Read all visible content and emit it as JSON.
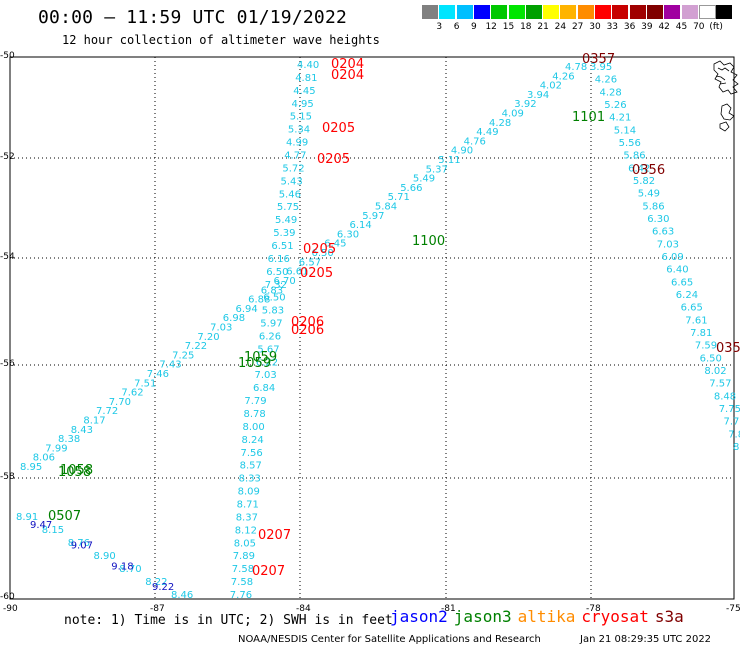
{
  "header": {
    "title": "00:00 – 11:59 UTC 01/19/2022",
    "subtitle": "12 hour collection of altimeter wave heights"
  },
  "colorbar": {
    "colors": [
      "#808080",
      "#00e5ff",
      "#00bfff",
      "#0000ff",
      "#00c800",
      "#00e600",
      "#00a000",
      "#ffff00",
      "#ffb400",
      "#ff8c00",
      "#ff0000",
      "#c80000",
      "#a00000",
      "#800000",
      "#a000a0",
      "#d2a0d2",
      "#ffffff",
      "#000000"
    ],
    "labels": [
      "3",
      "6",
      "9",
      "12",
      "15",
      "18",
      "21",
      "24",
      "27",
      "30",
      "33",
      "36",
      "39",
      "42",
      "45",
      "70",
      "(ft)"
    ]
  },
  "axes": {
    "y_labels": [
      "-50",
      "-52",
      "-54",
      "-56",
      "-58",
      "-60"
    ],
    "x_labels": [
      "-90",
      "-87",
      "-84",
      "-81",
      "-78",
      "-75"
    ]
  },
  "note": "note:  1) Time is in UTC; 2) SWH is in feet",
  "legend": [
    {
      "name": "jason2",
      "color": "#0000ff"
    },
    {
      "name": "jason3",
      "color": "#008000"
    },
    {
      "name": "altika",
      "color": "#ff8c00"
    },
    {
      "name": "cryosat",
      "color": "#ff0000"
    },
    {
      "name": "s3a",
      "color": "#800000"
    }
  ],
  "footer": {
    "credit": "NOAA/NESDIS Center for Satellite Applications and Research",
    "stamp": "Jan 21 08:29:35 UTC 2022"
  },
  "tracks": {
    "cyan_diagonal": [
      "8.95",
      "8.06",
      "7.99",
      "8.38",
      "8.43",
      "8.17",
      "7.72",
      "7.70",
      "7.62",
      "7.51",
      "7.46",
      "7.43",
      "7.25",
      "7.22",
      "7.20",
      "7.03",
      "6.98",
      "6.94",
      "6.88",
      "6.83",
      "6.70",
      "6.61",
      "6.57",
      "6.50",
      "6.45",
      "6.30",
      "6.14",
      "5.97",
      "5.84",
      "5.71",
      "5.66",
      "5.49",
      "5.37",
      "5.11",
      "4.90",
      "4.76",
      "4.49",
      "4.28",
      "4.09",
      "3.92",
      "3.94",
      "4.02",
      "4.26",
      "4.78"
    ],
    "cyan_vertical_left": [
      "4.40",
      "4.81",
      "4.45",
      "4.95",
      "5.15",
      "5.34",
      "4.99",
      "4.77",
      "5.72",
      "5.43",
      "5.46",
      "5.75",
      "5.49",
      "5.39",
      "6.51",
      "6.16",
      "6.50",
      "7.32",
      "6.50",
      "5.83",
      "5.97",
      "6.26",
      "5.67",
      "6.22",
      "7.03",
      "6.84",
      "7.79",
      "8.78",
      "8.00",
      "8.24",
      "7.56",
      "8.57",
      "8.33",
      "8.09",
      "8.71",
      "8.37",
      "8.12",
      "8.05",
      "7.89",
      "7.58",
      "7.58",
      "7.76"
    ],
    "cyan_right": [
      "3.95",
      "4.26",
      "4.28",
      "5.26",
      "4.21",
      "5.14",
      "5.56",
      "5.86",
      "6.42",
      "5.82",
      "5.49",
      "5.86",
      "6.30",
      "6.63",
      "7.03",
      "6.09",
      "6.40",
      "6.65",
      "6.24",
      "6.65",
      "7.61",
      "7.81",
      "7.59",
      "6.50",
      "8.02",
      "7.57",
      "8.48",
      "7.75",
      "7.75",
      "7.8",
      "8.4"
    ],
    "cyan_lower": [
      "8.91",
      "8.15",
      "8.76",
      "8.90",
      "8.70",
      "8.22",
      "8.46"
    ],
    "blue_lower": [
      "9.47",
      "9.07",
      "9.18",
      "9.22"
    ],
    "labels": [
      {
        "text": "0204",
        "color": "#ff0000"
      },
      {
        "text": "0204",
        "color": "#ff0000"
      },
      {
        "text": "0205",
        "color": "#ff0000"
      },
      {
        "text": "0205",
        "color": "#ff0000"
      },
      {
        "text": "0205",
        "color": "#ff0000"
      },
      {
        "text": "0205",
        "color": "#ff0000"
      },
      {
        "text": "0206",
        "color": "#ff0000"
      },
      {
        "text": "0206",
        "color": "#ff0000"
      },
      {
        "text": "0207",
        "color": "#ff0000"
      },
      {
        "text": "0207",
        "color": "#ff0000"
      },
      {
        "text": "0357",
        "color": "#800000"
      },
      {
        "text": "0356",
        "color": "#800000"
      },
      {
        "text": "035",
        "color": "#800000"
      },
      {
        "text": "1101",
        "color": "#008000"
      },
      {
        "text": "1100",
        "color": "#008000"
      },
      {
        "text": "1059",
        "color": "#008000"
      },
      {
        "text": "1059",
        "color": "#008000"
      },
      {
        "text": "1058",
        "color": "#008000"
      },
      {
        "text": "1058",
        "color": "#008000"
      },
      {
        "text": "0507",
        "color": "#008000"
      }
    ]
  }
}
